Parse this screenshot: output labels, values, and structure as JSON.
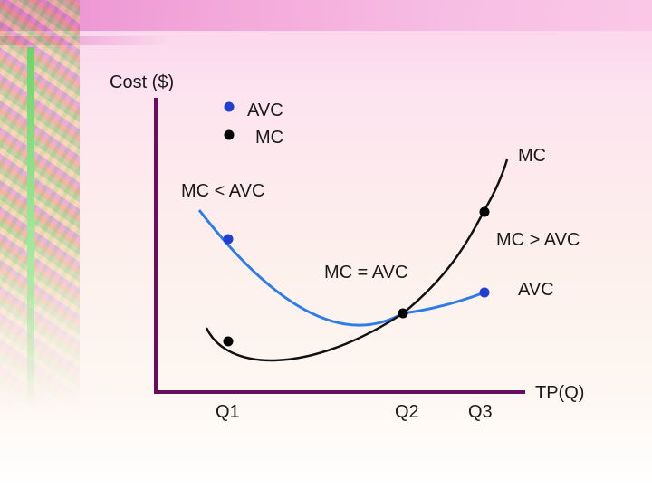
{
  "axes": {
    "y_label": "Cost ($)",
    "x_label": "TP(Q)",
    "ticks": [
      "Q1",
      "Q2",
      "Q3"
    ]
  },
  "legend": [
    {
      "label": "AVC",
      "color": "#1f3fd0"
    },
    {
      "label": "MC",
      "color": "#000000"
    }
  ],
  "curve_labels": {
    "mc": "MC",
    "avc": "AVC"
  },
  "annotations": {
    "mc_less": "MC < AVC",
    "mc_greater": "MC > AVC",
    "mc_equal": "MC = AVC"
  },
  "colors": {
    "axis": "#6a0d5e",
    "avc_curve": "#2e7bea",
    "mc_curve": "#111111",
    "avc_dot": "#1f3fd0",
    "mc_dot": "#000000"
  }
}
